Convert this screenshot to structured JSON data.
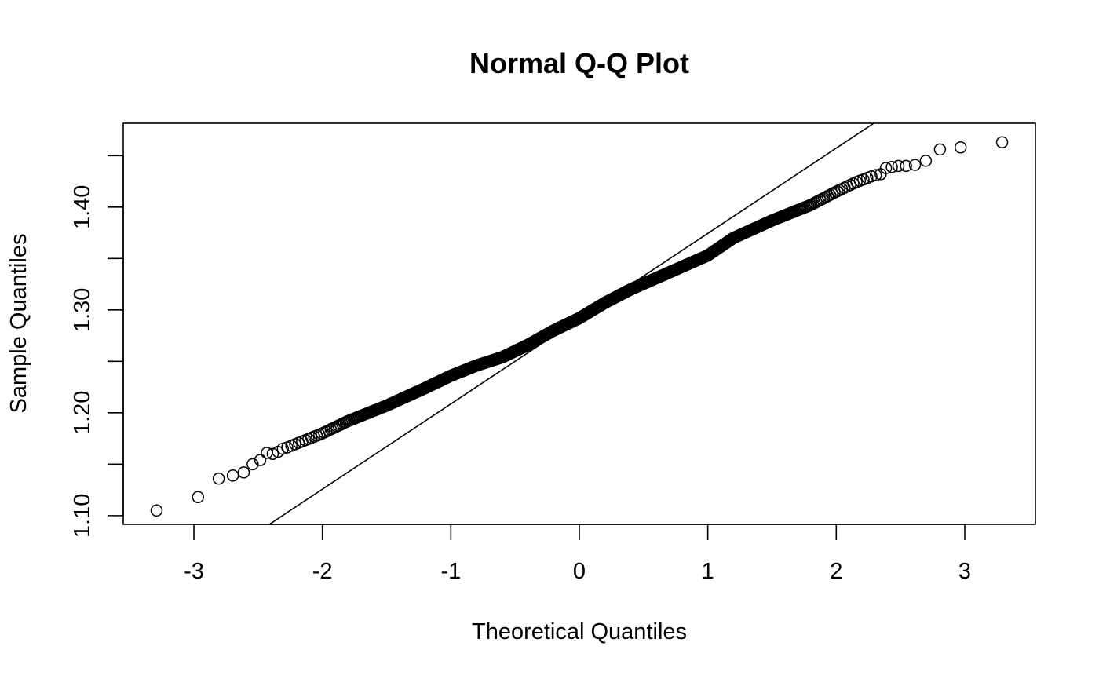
{
  "chart_data": {
    "type": "scatter",
    "title": "Normal Q-Q Plot",
    "xlabel": "Theoretical Quantiles",
    "ylabel": "Sample Quantiles",
    "xlim": [
      -3.55,
      3.55
    ],
    "ylim": [
      1.0915,
      1.4815
    ],
    "x_ticks": [
      -3,
      -2,
      -1,
      0,
      1,
      2,
      3
    ],
    "x_tick_labels": [
      "-3",
      "-2",
      "-1",
      "0",
      "1",
      "2",
      "3"
    ],
    "y_ticks": [
      1.1,
      1.15,
      1.2,
      1.25,
      1.3,
      1.35,
      1.4,
      1.45
    ],
    "y_tick_labels": [
      "1.10",
      "",
      "1.20",
      "",
      "1.30",
      "",
      "1.40",
      ""
    ],
    "reference_line": {
      "slope": 0.0829,
      "intercept": 1.2915
    },
    "n_points": 1000,
    "tail_points": [
      {
        "x": -3.29,
        "y": 1.105
      },
      {
        "x": -2.97,
        "y": 1.118
      },
      {
        "x": -2.81,
        "y": 1.136
      },
      {
        "x": -2.7,
        "y": 1.139
      },
      {
        "x": -2.61,
        "y": 1.142
      },
      {
        "x": -2.54,
        "y": 1.15
      },
      {
        "x": -2.48,
        "y": 1.154
      },
      {
        "x": -2.43,
        "y": 1.161
      },
      {
        "x": -2.38,
        "y": 1.16
      },
      {
        "x": -2.34,
        "y": 1.162
      },
      {
        "x": -2.3,
        "y": 1.165
      },
      {
        "x": 2.3,
        "y": 1.431
      },
      {
        "x": 2.34,
        "y": 1.432
      },
      {
        "x": 2.38,
        "y": 1.438
      },
      {
        "x": 2.43,
        "y": 1.439
      },
      {
        "x": 2.48,
        "y": 1.44
      },
      {
        "x": 2.54,
        "y": 1.44
      },
      {
        "x": 2.61,
        "y": 1.441
      },
      {
        "x": 2.7,
        "y": 1.445
      },
      {
        "x": 2.81,
        "y": 1.456
      },
      {
        "x": 2.97,
        "y": 1.458
      },
      {
        "x": 3.29,
        "y": 1.463
      }
    ],
    "body_curve": [
      {
        "x": -2.3,
        "y": 1.165
      },
      {
        "x": -2.0,
        "y": 1.18
      },
      {
        "x": -1.8,
        "y": 1.192
      },
      {
        "x": -1.5,
        "y": 1.207
      },
      {
        "x": -1.2,
        "y": 1.224
      },
      {
        "x": -1.0,
        "y": 1.236
      },
      {
        "x": -0.8,
        "y": 1.246
      },
      {
        "x": -0.6,
        "y": 1.254
      },
      {
        "x": -0.4,
        "y": 1.266
      },
      {
        "x": -0.2,
        "y": 1.28
      },
      {
        "x": 0.0,
        "y": 1.292
      },
      {
        "x": 0.2,
        "y": 1.307
      },
      {
        "x": 0.4,
        "y": 1.32
      },
      {
        "x": 0.6,
        "y": 1.331
      },
      {
        "x": 0.8,
        "y": 1.342
      },
      {
        "x": 1.0,
        "y": 1.353
      },
      {
        "x": 1.2,
        "y": 1.37
      },
      {
        "x": 1.5,
        "y": 1.387
      },
      {
        "x": 1.8,
        "y": 1.402
      },
      {
        "x": 2.0,
        "y": 1.415
      },
      {
        "x": 2.15,
        "y": 1.424
      },
      {
        "x": 2.3,
        "y": 1.431
      }
    ]
  }
}
